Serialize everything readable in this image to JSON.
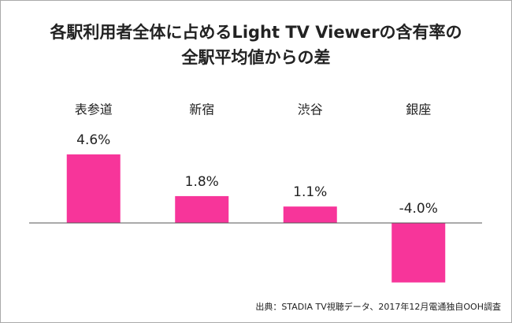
{
  "chart_data": {
    "type": "bar",
    "title": [
      "各駅利用者全体に占めるLight TV Viewerの含有率の",
      "全駅平均値からの差"
    ],
    "categories": [
      "表参道",
      "新宿",
      "渋谷",
      "銀座"
    ],
    "values": [
      4.6,
      1.8,
      1.1,
      -4.0
    ],
    "value_labels": [
      "4.6%",
      "1.8%",
      "1.1%",
      "-4.0%"
    ],
    "color": "#f7359a",
    "ylim": [
      -4.5,
      5.5
    ],
    "source": "出典：STADIA TV視聴データ、2017年12月電通独自OOH調査"
  }
}
